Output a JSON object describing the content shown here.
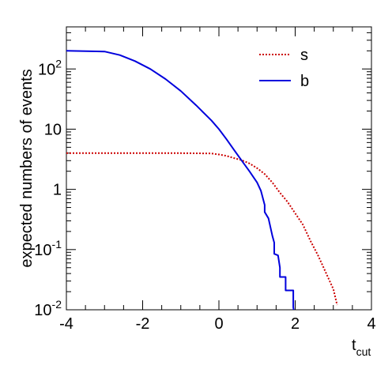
{
  "chart_data": {
    "type": "line",
    "title": "",
    "xlabel": "t",
    "xlabel_sub": "cut",
    "ylabel": "expected numbers of events",
    "xlim": [
      -4,
      4
    ],
    "ylim": [
      0.01,
      500
    ],
    "yscale": "log",
    "grid": false,
    "legend_position": "top-right",
    "x_ticks": [
      -4,
      -2,
      0,
      2,
      4
    ],
    "x_tick_labels": [
      "-4",
      "-2",
      "0",
      "2",
      "4"
    ],
    "y_ticks": [
      {
        "value": 0.01,
        "base": "10",
        "exp": "-2"
      },
      {
        "value": 0.1,
        "base": "10",
        "exp": "-1"
      },
      {
        "value": 1,
        "base": "1",
        "exp": ""
      },
      {
        "value": 10,
        "base": "10",
        "exp": ""
      },
      {
        "value": 100,
        "base": "10",
        "exp": "2"
      }
    ],
    "series": [
      {
        "name": "s",
        "color": "#cc0000",
        "dash": "dotted",
        "x": [
          -4.0,
          -3.0,
          -2.0,
          -1.0,
          -0.2,
          0.0,
          0.2,
          0.4,
          0.6,
          0.8,
          1.0,
          1.2,
          1.4,
          1.6,
          1.8,
          2.0,
          2.2,
          2.4,
          2.6,
          2.8,
          3.0,
          3.1
        ],
        "y": [
          4.0,
          4.0,
          4.0,
          4.0,
          3.95,
          3.8,
          3.6,
          3.3,
          3.05,
          2.7,
          2.25,
          1.8,
          1.3,
          0.88,
          0.62,
          0.4,
          0.26,
          0.14,
          0.08,
          0.042,
          0.022,
          0.012
        ]
      },
      {
        "name": "b",
        "color": "#0000dd",
        "dash": "solid",
        "x": [
          -4.0,
          -3.0,
          -2.6,
          -2.2,
          -1.8,
          -1.4,
          -1.0,
          -0.6,
          -0.2,
          0.0,
          0.2,
          0.4,
          0.6,
          0.8,
          1.0,
          1.1,
          1.2,
          1.2,
          1.3,
          1.4,
          1.45,
          1.45,
          1.55,
          1.6,
          1.6,
          1.75,
          1.75,
          1.95,
          1.95,
          1.96
        ],
        "y": [
          200,
          195,
          170,
          135,
          100,
          68,
          43,
          25,
          14,
          10,
          6.8,
          4.5,
          3.0,
          2.0,
          1.3,
          0.95,
          0.55,
          0.42,
          0.33,
          0.17,
          0.13,
          0.085,
          0.08,
          0.05,
          0.035,
          0.035,
          0.021,
          0.021,
          0.011,
          0.01
        ]
      }
    ]
  }
}
